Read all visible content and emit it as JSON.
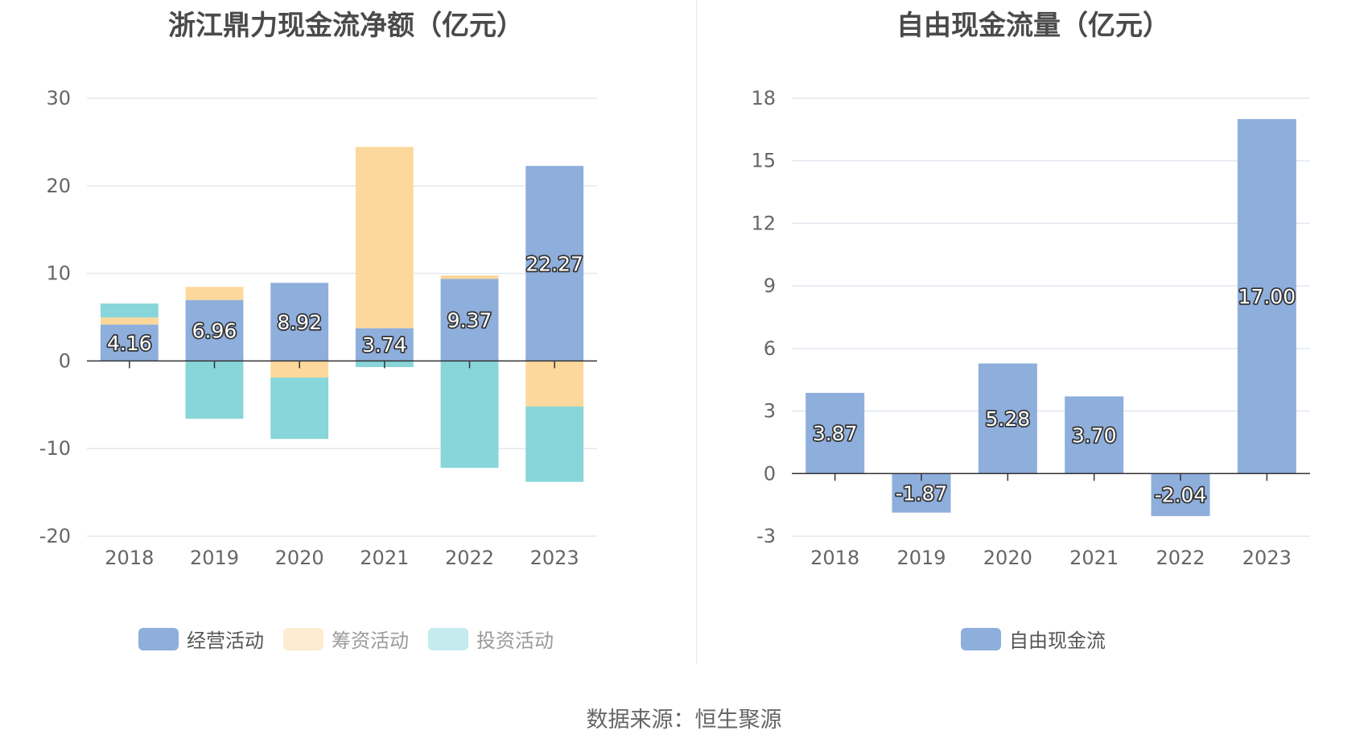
{
  "colors": {
    "operating": "#8eaedc",
    "financing": "#fdd89c",
    "investing": "#88d5da",
    "investing_legend": "#c4ebee",
    "financing_legend": "#feecd1",
    "grid": "#e3e8f0",
    "axis": "#333333",
    "text": "#666666"
  },
  "source": {
    "label": "数据来源：恒生聚源"
  },
  "chart_data": [
    {
      "type": "bar",
      "stacked": true,
      "title": "浙江鼎力现金流净额（亿元）",
      "categories": [
        "2018",
        "2019",
        "2020",
        "2021",
        "2022",
        "2023"
      ],
      "ylim": [
        -20,
        30
      ],
      "yticks": [
        30,
        20,
        10,
        0,
        -10,
        -20
      ],
      "series": [
        {
          "name": "经营活动",
          "color_key": "operating",
          "values": [
            4.16,
            6.96,
            8.92,
            3.74,
            9.37,
            22.27
          ],
          "labels": [
            "4.16",
            "6.96",
            "8.92",
            "3.74",
            "9.37",
            "22.27"
          ]
        },
        {
          "name": "筹资活动",
          "color_key": "financing",
          "values": [
            0.8,
            1.5,
            -1.9,
            20.7,
            0.4,
            -5.2
          ]
        },
        {
          "name": "投资活动",
          "color_key": "investing",
          "values": [
            1.6,
            -6.6,
            -7.0,
            -0.7,
            -12.2,
            -8.6
          ]
        }
      ],
      "legend": [
        {
          "name": "经营活动",
          "muted": false
        },
        {
          "name": "筹资活动",
          "muted": true
        },
        {
          "name": "投资活动",
          "muted": true
        }
      ]
    },
    {
      "type": "bar",
      "title": "自由现金流量（亿元）",
      "categories": [
        "2018",
        "2019",
        "2020",
        "2021",
        "2022",
        "2023"
      ],
      "ylim": [
        -3,
        18
      ],
      "yticks": [
        18,
        15,
        12,
        9,
        6,
        3,
        0,
        -3
      ],
      "series": [
        {
          "name": "自由现金流",
          "color_key": "operating",
          "values": [
            3.87,
            -1.87,
            5.28,
            3.7,
            -2.04,
            17.0
          ],
          "labels": [
            "3.87",
            "-1.87",
            "5.28",
            "3.70",
            "-2.04",
            "17.00"
          ]
        }
      ],
      "legend": [
        {
          "name": "自由现金流",
          "muted": false
        }
      ]
    }
  ]
}
